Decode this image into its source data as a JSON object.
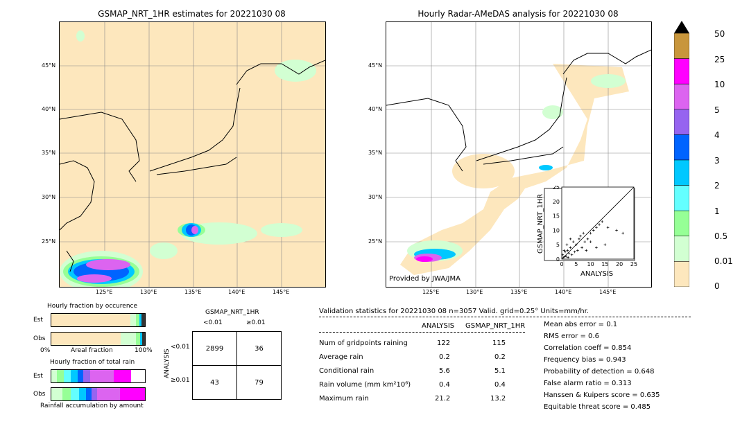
{
  "left_map": {
    "title": "GSMAP_NRT_1HR estimates for 20221030 08"
  },
  "right_map": {
    "title": "Hourly Radar-AMeDAS analysis for 20221030 08",
    "credit": "Provided by JWA/JMA"
  },
  "lat_ticks": [
    "45°N",
    "40°N",
    "35°N",
    "30°N",
    "25°N"
  ],
  "lon_ticks": [
    "125°E",
    "130°E",
    "135°E",
    "140°E",
    "145°E"
  ],
  "colorbar": {
    "labels": [
      "50",
      "25",
      "10",
      "5",
      "4",
      "3",
      "2",
      "1",
      "0.5",
      "0.01",
      "0"
    ],
    "colors": [
      "#c8963c",
      "#ff00ff",
      "#dc64f0",
      "#9664f0",
      "#0064ff",
      "#00c8ff",
      "#64ffff",
      "#96ff96",
      "#d2ffd2",
      "#fde7bd"
    ]
  },
  "occurrence": {
    "title": "Hourly fraction by occurence",
    "est_label": "Est",
    "obs_label": "Obs",
    "axis_left": "0%",
    "axis_mid": "Areal fraction",
    "axis_right": "100%"
  },
  "total_rain": {
    "title": "Hourly fraction of total rain",
    "est_label": "Est",
    "obs_label": "Obs",
    "footer": "Rainfall accumulation by amount"
  },
  "contingency": {
    "header": "GSMAP_NRT_1HR",
    "col1": "<0.01",
    "col2": "≥0.01",
    "side": "ANALYSIS",
    "row1": "<0.01",
    "row2": "≥0.01",
    "cells": [
      "2899",
      "36",
      "43",
      "79"
    ]
  },
  "scatter": {
    "xlabel": "ANALYSIS",
    "ylabel": "GSMAP_NRT_1HR",
    "ticks": [
      "0",
      "5",
      "10",
      "15",
      "20",
      "25"
    ]
  },
  "validation": {
    "header": "Validation statistics for 20221030 08  n=3057 Valid. grid=0.25° Units=mm/hr.",
    "col_analysis": "ANALYSIS",
    "col_gsmap": "GSMAP_NRT_1HR",
    "rows": [
      {
        "label": "Num of gridpoints raining",
        "analysis": "122",
        "gsmap": "115"
      },
      {
        "label": "Average rain",
        "analysis": "0.2",
        "gsmap": "0.2"
      },
      {
        "label": "Conditional rain",
        "analysis": "5.6",
        "gsmap": "5.1"
      },
      {
        "label": "Rain volume (mm km²10⁶)",
        "analysis": "0.4",
        "gsmap": "0.4"
      },
      {
        "label": "Maximum rain",
        "analysis": "21.2",
        "gsmap": "13.2"
      }
    ],
    "scores": [
      "Mean abs error =    0.1",
      "RMS error =    0.6",
      "Correlation coeff =  0.854",
      "Frequency bias =  0.943",
      "Probability of detection =  0.648",
      "False alarm ratio =  0.313",
      "Hanssen & Kuipers score =  0.635",
      "Equitable threat score =  0.485"
    ]
  },
  "chart_data": {
    "type": "scatter",
    "title": "",
    "xlabel": "ANALYSIS",
    "ylabel": "GSMAP_NRT_1HR",
    "xlim": [
      0,
      25
    ],
    "ylim": [
      0,
      25
    ],
    "points": [
      [
        0.5,
        0.5
      ],
      [
        1,
        0.8
      ],
      [
        1.2,
        2.5
      ],
      [
        1.5,
        1
      ],
      [
        2,
        3
      ],
      [
        2.5,
        2
      ],
      [
        3,
        4
      ],
      [
        3.5,
        1.5
      ],
      [
        4,
        6
      ],
      [
        5,
        5
      ],
      [
        5.5,
        3
      ],
      [
        6,
        7
      ],
      [
        6.5,
        8
      ],
      [
        7,
        4
      ],
      [
        8,
        6
      ],
      [
        9,
        7
      ],
      [
        10,
        9
      ],
      [
        11,
        10
      ],
      [
        12,
        11
      ],
      [
        13,
        12
      ],
      [
        14,
        13
      ],
      [
        15,
        5
      ],
      [
        16,
        11
      ],
      [
        19,
        10
      ],
      [
        21.2,
        9
      ],
      [
        0.3,
        1.5
      ],
      [
        0.8,
        3
      ],
      [
        1.8,
        5
      ],
      [
        2.2,
        0.6
      ],
      [
        3,
        7
      ],
      [
        4.5,
        2.5
      ],
      [
        7.5,
        9
      ],
      [
        8.5,
        3
      ],
      [
        10,
        6
      ],
      [
        12,
        4
      ]
    ]
  }
}
